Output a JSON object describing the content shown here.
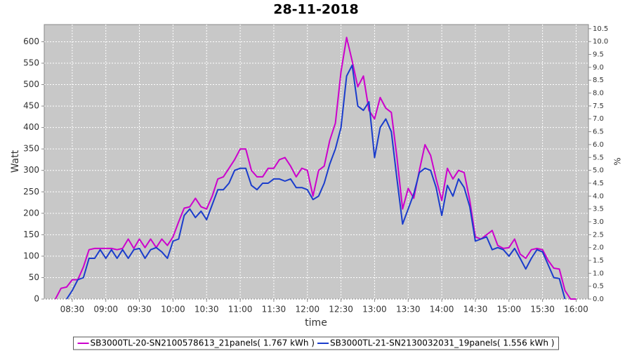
{
  "chart_data": {
    "type": "line",
    "title": "28-11-2018",
    "xlabel": "time",
    "ylabel": "Watt",
    "y2label": "%",
    "grid": true,
    "legend": "bottom",
    "x": [
      "08:15",
      "08:20",
      "08:25",
      "08:30",
      "08:35",
      "08:40",
      "08:45",
      "08:50",
      "08:55",
      "09:00",
      "09:05",
      "09:10",
      "09:15",
      "09:20",
      "09:25",
      "09:30",
      "09:35",
      "09:40",
      "09:45",
      "09:50",
      "09:55",
      "10:00",
      "10:05",
      "10:10",
      "10:15",
      "10:20",
      "10:25",
      "10:30",
      "10:35",
      "10:40",
      "10:45",
      "10:50",
      "10:55",
      "11:00",
      "11:05",
      "11:10",
      "11:15",
      "11:20",
      "11:25",
      "11:30",
      "11:35",
      "11:40",
      "11:45",
      "11:50",
      "11:55",
      "12:00",
      "12:05",
      "12:10",
      "12:15",
      "12:20",
      "12:25",
      "12:30",
      "12:35",
      "12:40",
      "12:45",
      "12:50",
      "12:55",
      "13:00",
      "13:05",
      "13:10",
      "13:15",
      "13:20",
      "13:25",
      "13:30",
      "13:35",
      "13:40",
      "13:45",
      "13:50",
      "13:55",
      "14:00",
      "14:05",
      "14:10",
      "14:15",
      "14:20",
      "14:25",
      "14:30",
      "14:35",
      "14:40",
      "14:45",
      "14:50",
      "14:55",
      "15:00",
      "15:05",
      "15:10",
      "15:15",
      "15:20",
      "15:25",
      "15:30",
      "15:35",
      "15:40",
      "15:45",
      "15:50",
      "15:55",
      "16:00"
    ],
    "series": [
      {
        "name": "SB3000TL-20-SN2100578613_21panels( 1.767 kWh )",
        "color": "#cc00cc",
        "values": [
          0,
          25,
          28,
          45,
          45,
          75,
          115,
          118,
          118,
          118,
          118,
          115,
          118,
          140,
          118,
          140,
          120,
          140,
          120,
          140,
          125,
          145,
          180,
          212,
          215,
          235,
          215,
          210,
          240,
          280,
          285,
          305,
          325,
          350,
          350,
          300,
          285,
          285,
          305,
          305,
          325,
          330,
          310,
          285,
          305,
          300,
          240,
          300,
          310,
          370,
          410,
          530,
          610,
          555,
          495,
          520,
          440,
          420,
          470,
          445,
          435,
          330,
          210,
          258,
          235,
          300,
          360,
          335,
          280,
          230,
          305,
          280,
          300,
          295,
          230,
          145,
          140,
          150,
          160,
          125,
          118,
          120,
          140,
          105,
          95,
          115,
          118,
          115,
          90,
          72,
          70,
          20,
          0,
          0
        ]
      },
      {
        "name": "SB3000TL-21-SN2130032031_19panels( 1.556 kWh )",
        "color": "#1a3ccc",
        "values": [
          null,
          null,
          0,
          20,
          45,
          50,
          95,
          95,
          115,
          95,
          115,
          95,
          115,
          95,
          115,
          118,
          95,
          115,
          120,
          110,
          95,
          135,
          140,
          195,
          210,
          190,
          205,
          185,
          220,
          255,
          255,
          270,
          300,
          305,
          305,
          265,
          255,
          270,
          270,
          280,
          280,
          275,
          280,
          260,
          260,
          255,
          232,
          240,
          270,
          315,
          350,
          400,
          520,
          545,
          450,
          440,
          460,
          330,
          400,
          420,
          390,
          280,
          175,
          210,
          245,
          295,
          305,
          300,
          260,
          195,
          265,
          240,
          280,
          260,
          215,
          135,
          140,
          145,
          115,
          120,
          115,
          100,
          118,
          95,
          70,
          95,
          115,
          110,
          80,
          50,
          48,
          0,
          null,
          null
        ]
      }
    ],
    "xlim": [
      "08:05",
      "16:11"
    ],
    "xticks": [
      "08:30",
      "09:00",
      "09:30",
      "10:00",
      "10:30",
      "11:00",
      "11:30",
      "12:00",
      "12:30",
      "13:00",
      "13:30",
      "14:00",
      "14:30",
      "15:00",
      "15:30",
      "16:00"
    ],
    "ylim": [
      0,
      640
    ],
    "yticks": [
      0,
      50,
      100,
      150,
      200,
      250,
      300,
      350,
      400,
      450,
      500,
      550,
      600
    ],
    "y2lim": [
      0,
      10.66
    ],
    "y2ticks": [
      {
        "value": 0,
        "label": "0.0"
      },
      0.5,
      {
        "value": 1,
        "label": "1.0"
      },
      1.5,
      {
        "value": 2,
        "label": "2.0"
      },
      2.5,
      {
        "value": 3,
        "label": "3.0"
      },
      3.5,
      {
        "value": 4,
        "label": "4.0"
      },
      4.5,
      {
        "value": 5,
        "label": "5.0"
      },
      5.5,
      {
        "value": 6,
        "label": "6.0"
      },
      6.5,
      {
        "value": 7,
        "label": "7.0"
      },
      7.5,
      {
        "value": 8,
        "label": "8.0"
      },
      8.5,
      {
        "value": 9,
        "label": "9.0"
      },
      9.5,
      {
        "value": 10,
        "label": "10.0"
      },
      10.5
    ]
  }
}
